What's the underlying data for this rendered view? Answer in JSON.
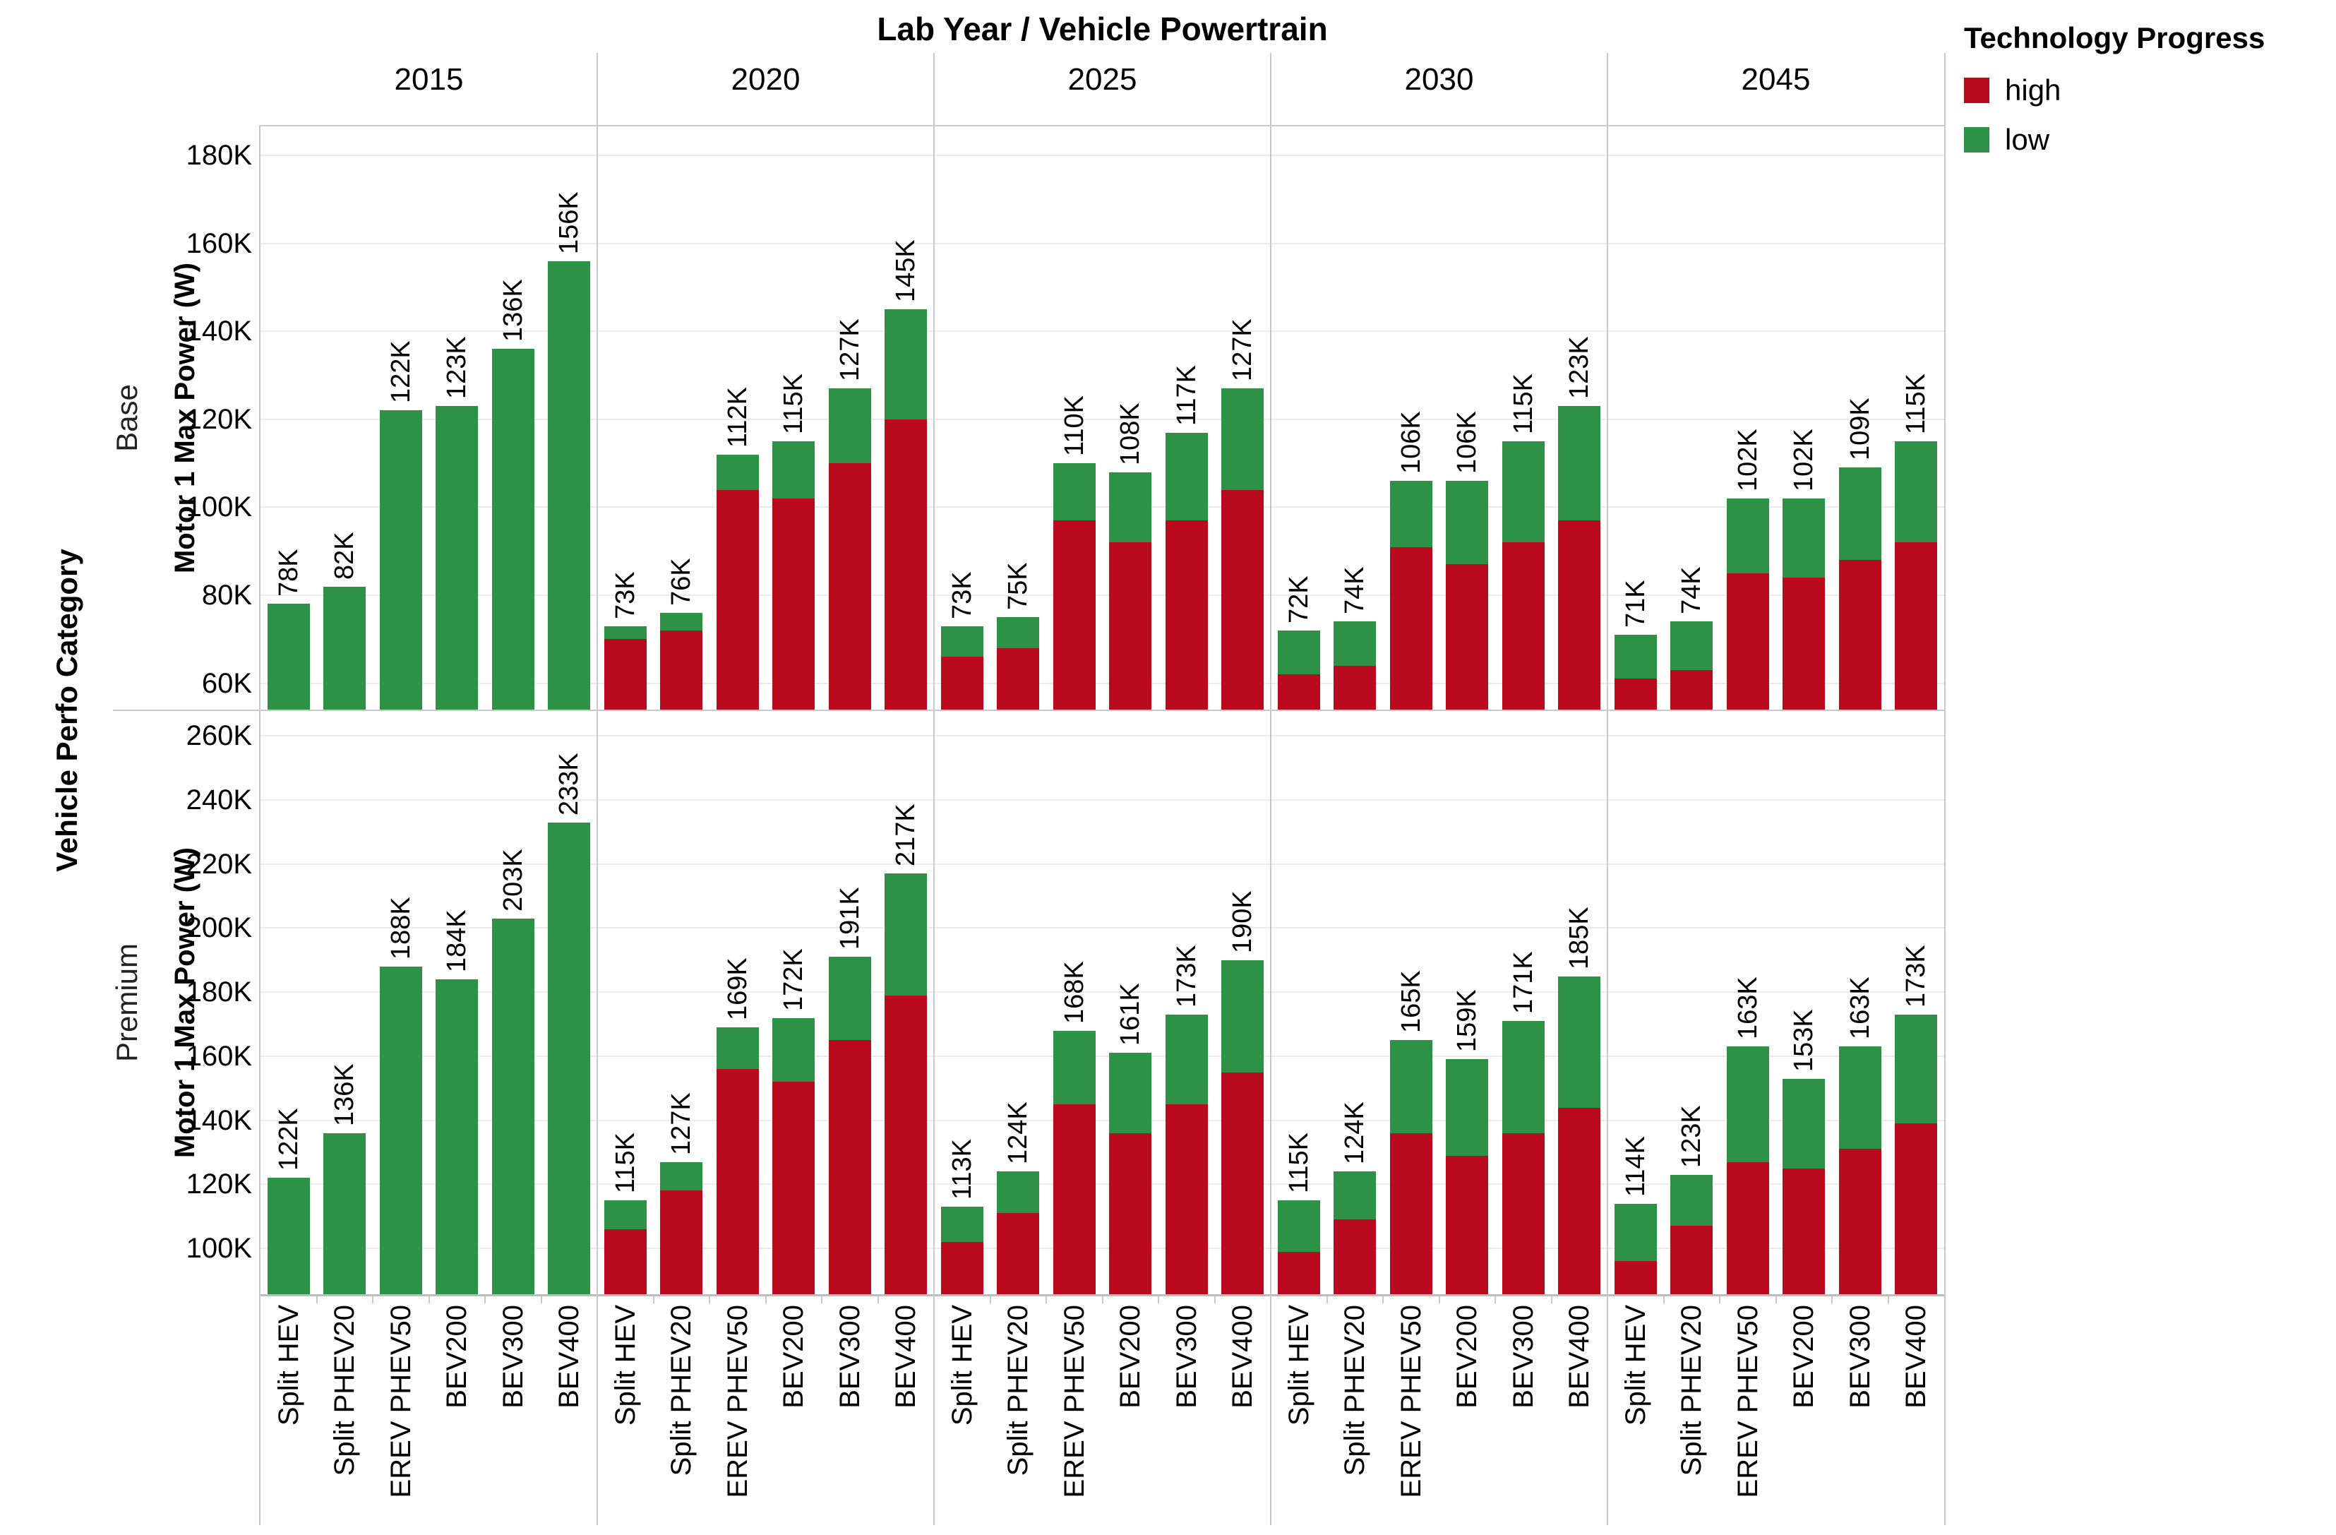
{
  "header": {
    "title": "Lab Year  /  Vehicle Powertrain"
  },
  "legend": {
    "title": "Technology Progress",
    "items": [
      {
        "label": "high",
        "color": "#B90A1E"
      },
      {
        "label": "low",
        "color": "#2E9246"
      }
    ]
  },
  "left_labels": {
    "category_axis": "Vehicle Perfo Category",
    "value_axis": "Motor 1 Max Power (W)"
  },
  "chart_data": {
    "type": "bar",
    "stacked": true,
    "title": "Lab Year  /  Vehicle Powertrain",
    "legend_title": "Technology Progress",
    "series_names": [
      "high",
      "low"
    ],
    "series_colors": {
      "high": "#B90A1E",
      "low": "#2E9246"
    },
    "unit": "W (thousands)",
    "years": [
      "2015",
      "2020",
      "2025",
      "2030",
      "2045"
    ],
    "powertrains": [
      "Split HEV",
      "Split PHEV20",
      "EREV PHEV50",
      "BEV200",
      "BEV300",
      "BEV400"
    ],
    "note_values_in_K": "totals_k = full bar height (label shown); high_k = red 'high' segment top; low segment = totals_k - high_k; high_k of 0 means bar is entirely green",
    "rows": [
      {
        "name": "Base",
        "ylabel": "Motor 1 Max Power (W)",
        "ylim_k": [
          54,
          186.6
        ],
        "yticks_k": [
          60,
          80,
          100,
          120,
          140,
          160,
          180
        ],
        "totals_k": {
          "2015": [
            78,
            82,
            122,
            123,
            136,
            156
          ],
          "2020": [
            73,
            76,
            112,
            115,
            127,
            145
          ],
          "2025": [
            73,
            75,
            110,
            108,
            117,
            127
          ],
          "2030": [
            72,
            74,
            106,
            106,
            115,
            123
          ],
          "2045": [
            71,
            74,
            102,
            102,
            109,
            115
          ]
        },
        "high_k": {
          "2015": [
            0,
            0,
            0,
            0,
            0,
            0
          ],
          "2020": [
            70,
            72,
            104,
            102,
            110,
            120
          ],
          "2025": [
            66,
            68,
            97,
            92,
            97,
            104
          ],
          "2030": [
            62,
            64,
            91,
            87,
            92,
            97
          ],
          "2045": [
            61,
            63,
            85,
            84,
            88,
            92
          ]
        }
      },
      {
        "name": "Premium",
        "ylabel": "Motor 1 Max Power (W)",
        "ylim_k": [
          85.7,
          268
        ],
        "yticks_k": [
          100,
          120,
          140,
          160,
          180,
          200,
          220,
          240,
          260
        ],
        "totals_k": {
          "2015": [
            122,
            136,
            188,
            184,
            203,
            233
          ],
          "2020": [
            115,
            127,
            169,
            172,
            191,
            217
          ],
          "2025": [
            113,
            124,
            168,
            161,
            173,
            190
          ],
          "2030": [
            115,
            124,
            165,
            159,
            171,
            185
          ],
          "2045": [
            114,
            123,
            163,
            153,
            163,
            173
          ]
        },
        "high_k": {
          "2015": [
            0,
            0,
            0,
            0,
            0,
            0
          ],
          "2020": [
            106,
            118,
            156,
            152,
            165,
            179
          ],
          "2025": [
            102,
            111,
            145,
            136,
            145,
            155
          ],
          "2030": [
            99,
            109,
            136,
            129,
            136,
            144
          ],
          "2045": [
            96,
            107,
            127,
            125,
            131,
            139
          ]
        }
      }
    ]
  }
}
